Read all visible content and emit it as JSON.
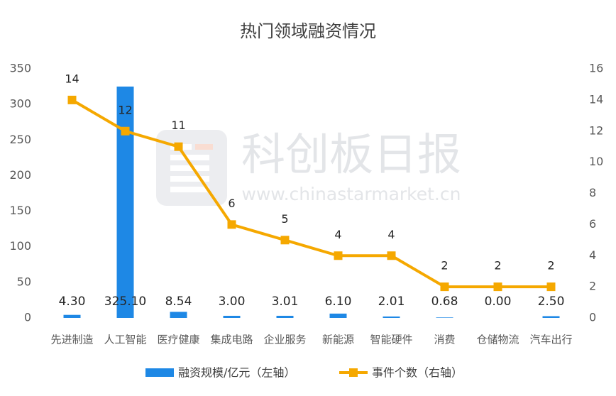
{
  "chart_data": {
    "type": "combo",
    "title": "热门领域融资情况",
    "categories": [
      "先进制造",
      "人工智能",
      "医疗健康",
      "集成电路",
      "企业服务",
      "新能源",
      "智能硬件",
      "消费",
      "仓储物流",
      "汽车出行"
    ],
    "series": [
      {
        "name": "融资规模/亿元（左轴）",
        "type": "bar",
        "axis": "y",
        "color": "#1e88e5",
        "values": [
          4.3,
          325.1,
          8.54,
          3.0,
          3.01,
          6.1,
          2.01,
          0.68,
          0.0,
          2.5
        ],
        "value_labels": [
          "4.30",
          "325.10",
          "8.54",
          "3.00",
          "3.01",
          "6.10",
          "2.01",
          "0.68",
          "0.00",
          "2.50"
        ]
      },
      {
        "name": "事件个数（右轴）",
        "type": "line",
        "axis": "y2",
        "color": "#f5a800",
        "values": [
          14,
          12,
          11,
          6,
          5,
          4,
          4,
          2,
          2,
          2
        ]
      }
    ],
    "ylim": [
      0,
      350
    ],
    "yticks": [
      0,
      50,
      100,
      150,
      200,
      250,
      300,
      350
    ],
    "y2lim": [
      0,
      16
    ],
    "y2ticks": [
      0,
      2,
      4,
      6,
      8,
      10,
      12,
      14,
      16
    ],
    "grid": false,
    "watermark": {
      "title": "科创板日报",
      "url": "www.chinastarmarket.cn"
    }
  }
}
